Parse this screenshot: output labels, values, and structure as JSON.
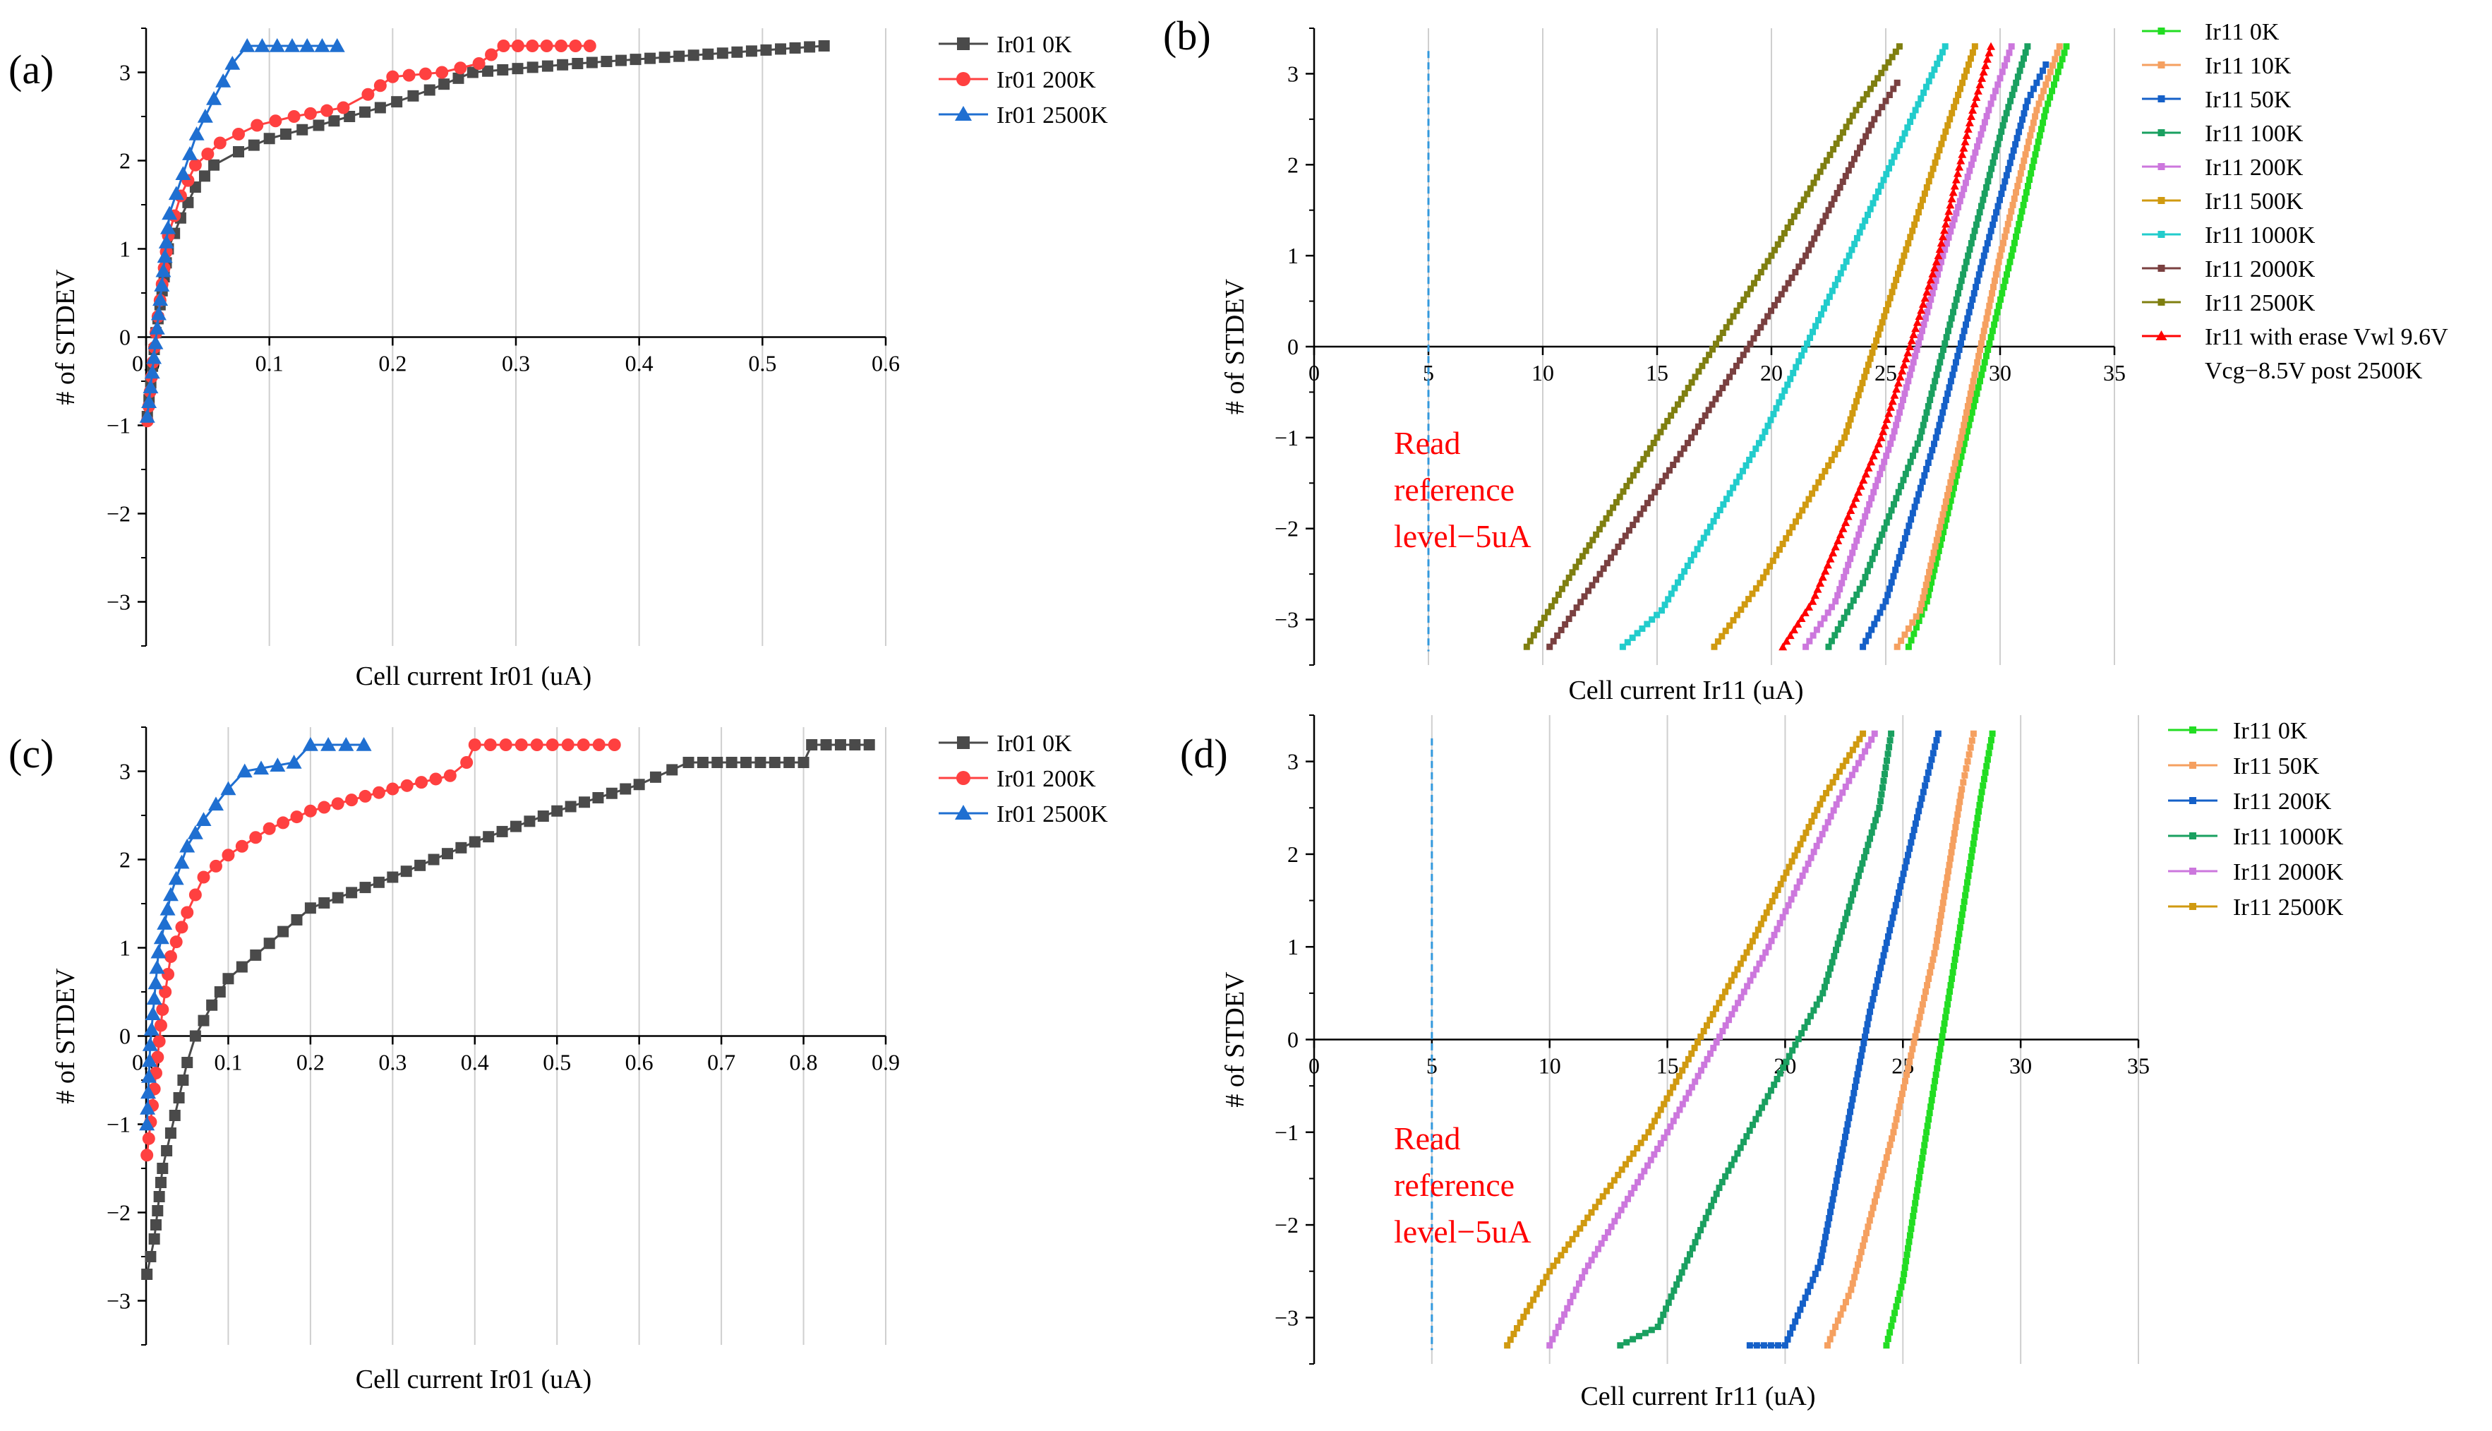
{
  "chart_data": [
    {
      "id": "a",
      "panel_label": "(a)",
      "type": "line",
      "xlabel": "Cell current Ir01 (uA)",
      "ylabel": "# of STDEV",
      "xlim": [
        0,
        0.6
      ],
      "ylim": [
        -3.5,
        3.5
      ],
      "xticks": [
        "0.0",
        "0.1",
        "0.2",
        "0.3",
        "0.4",
        "0.5",
        "0.6"
      ],
      "yticks": [
        "-3",
        "-2",
        "-1",
        "0",
        "1",
        "2",
        "3"
      ],
      "xgrid": true,
      "ygrid": false,
      "legend": "top-right outside",
      "series": [
        {
          "name": "Ir01 0K",
          "color": "#4a4a4a",
          "marker": "square",
          "x": [
            0.001,
            0.008,
            0.018,
            0.028,
            0.04,
            0.055,
            0.075,
            0.1,
            0.14,
            0.19,
            0.23,
            0.265,
            0.35,
            0.55
          ],
          "y": [
            -0.9,
            0.05,
            1.0,
            1.35,
            1.7,
            1.95,
            2.1,
            2.25,
            2.4,
            2.6,
            2.8,
            3.0,
            3.1,
            3.3
          ]
        },
        {
          "name": "Ir01 200K",
          "color": "#ff4040",
          "marker": "circle",
          "x": [
            0.001,
            0.008,
            0.018,
            0.028,
            0.04,
            0.06,
            0.09,
            0.12,
            0.16,
            0.18,
            0.2,
            0.24,
            0.27,
            0.29,
            0.36
          ],
          "y": [
            -0.95,
            0.05,
            1.15,
            1.6,
            1.95,
            2.2,
            2.4,
            2.5,
            2.6,
            2.75,
            2.95,
            3.0,
            3.1,
            3.3,
            3.3
          ]
        },
        {
          "name": "Ir01 2500K",
          "color": "#1f6fd1",
          "marker": "triangle",
          "x": [
            0.001,
            0.009,
            0.019,
            0.03,
            0.041,
            0.055,
            0.07,
            0.082,
            0.155
          ],
          "y": [
            -0.9,
            0.1,
            1.4,
            1.85,
            2.3,
            2.7,
            3.1,
            3.3,
            3.3
          ]
        }
      ]
    },
    {
      "id": "b",
      "panel_label": "(b)",
      "type": "line",
      "xlabel": "Cell current Ir11 (uA)",
      "ylabel": "# of STDEV",
      "xlim": [
        0,
        35
      ],
      "ylim": [
        -3.5,
        3.5
      ],
      "xticks": [
        "0",
        "5",
        "10",
        "15",
        "20",
        "25",
        "30",
        "35"
      ],
      "yticks": [
        "-3",
        "-2",
        "-1",
        "0",
        "1",
        "2",
        "3"
      ],
      "xgrid": true,
      "ygrid": false,
      "legend": "top-right outside",
      "annotation": {
        "lines": [
          "Read",
          "reference",
          "level−5uA"
        ],
        "x_value": 5
      },
      "series": [
        {
          "name": "Ir11 0K",
          "color": "#22dd22",
          "x": [
            26,
            26.8,
            28.5,
            30.5,
            32,
            32.9
          ],
          "y": [
            -3.3,
            -2.8,
            -1,
            1,
            2.6,
            3.3
          ]
        },
        {
          "name": "Ir11 10K",
          "color": "#f5a060",
          "x": [
            25.5,
            26.5,
            28.3,
            30,
            31.6,
            32.6
          ],
          "y": [
            -3.3,
            -2.9,
            -1,
            1,
            2.6,
            3.3
          ]
        },
        {
          "name": "Ir11 50K",
          "color": "#1560c8",
          "x": [
            24,
            25,
            27.2,
            29.3,
            31.2,
            32
          ],
          "y": [
            -3.3,
            -2.8,
            -1,
            1,
            2.7,
            3.1
          ]
        },
        {
          "name": "Ir11 100K",
          "color": "#1aa060",
          "x": [
            22.5,
            24,
            26.5,
            28.6,
            30.2,
            31.2
          ],
          "y": [
            -3.3,
            -2.6,
            -1,
            1,
            2.5,
            3.3
          ]
        },
        {
          "name": "Ir11 200K",
          "color": "#cc77dd",
          "x": [
            21.5,
            22.8,
            25.3,
            27.5,
            29.5,
            30.5
          ],
          "y": [
            -3.3,
            -2.8,
            -1,
            1,
            2.6,
            3.3
          ]
        },
        {
          "name": "Ir11 500K",
          "color": "#d09a10",
          "x": [
            17.5,
            19.5,
            23.2,
            25.8,
            27.8,
            28.9
          ],
          "y": [
            -3.3,
            -2.6,
            -1,
            1,
            2.5,
            3.3
          ]
        },
        {
          "name": "Ir11 1000K",
          "color": "#22cccc",
          "x": [
            13.5,
            15.2,
            19.6,
            23.4,
            26.3,
            27.6
          ],
          "y": [
            -3.3,
            -2.9,
            -1,
            1,
            2.6,
            3.3
          ]
        },
        {
          "name": "Ir11 2000K",
          "color": "#7a4040",
          "x": [
            10.3,
            12.5,
            16.5,
            21.5,
            24.5,
            25.5
          ],
          "y": [
            -3.3,
            -2.5,
            -1,
            1,
            2.5,
            2.9
          ]
        },
        {
          "name": "Ir11 2500K",
          "color": "#7f7f10",
          "x": [
            9.3,
            11,
            15,
            20,
            23.7,
            25.6
          ],
          "y": [
            -3.3,
            -2.6,
            -1,
            1,
            2.6,
            3.3
          ]
        },
        {
          "name": "Ir11 with erase Vwl 9.6V Vcg−8.5V post 2500K",
          "legend_lines": [
            "Ir11 with erase Vwl 9.6V",
            "Vcg−8.5V post 2500K"
          ],
          "color": "#ff0000",
          "x": [
            20.5,
            21.8,
            24.8,
            27.3,
            28.8,
            29.6
          ],
          "y": [
            -3.3,
            -2.8,
            -1,
            1,
            2.6,
            3.3
          ]
        }
      ]
    },
    {
      "id": "c",
      "panel_label": "(c)",
      "type": "line",
      "xlabel": "Cell current Ir01 (uA)",
      "ylabel": "# of STDEV",
      "xlim": [
        0,
        0.9
      ],
      "ylim": [
        -3.5,
        3.5
      ],
      "xticks": [
        "0.0",
        "0.1",
        "0.2",
        "0.3",
        "0.4",
        "0.5",
        "0.6",
        "0.7",
        "0.8",
        "0.9"
      ],
      "yticks": [
        "-3",
        "-2",
        "-1",
        "0",
        "1",
        "2",
        "3"
      ],
      "xgrid": true,
      "ygrid": false,
      "legend": "top-right outside",
      "series": [
        {
          "name": "Ir01 0K",
          "color": "#4a4a4a",
          "marker": "square",
          "x": [
            0.001,
            0.01,
            0.02,
            0.03,
            0.04,
            0.05,
            0.06,
            0.08,
            0.1,
            0.15,
            0.2,
            0.3,
            0.4,
            0.5,
            0.6,
            0.66,
            0.8,
            0.81,
            0.88
          ],
          "y": [
            -2.7,
            -2.3,
            -1.5,
            -1.1,
            -0.7,
            -0.3,
            0.0,
            0.35,
            0.65,
            1.05,
            1.45,
            1.8,
            2.2,
            2.55,
            2.85,
            3.1,
            3.1,
            3.3,
            3.3
          ]
        },
        {
          "name": "Ir01 200K",
          "color": "#ff4040",
          "marker": "circle",
          "x": [
            0.001,
            0.01,
            0.02,
            0.03,
            0.05,
            0.07,
            0.1,
            0.15,
            0.2,
            0.3,
            0.37,
            0.39,
            0.4,
            0.57
          ],
          "y": [
            -1.35,
            -0.6,
            0.3,
            0.9,
            1.4,
            1.8,
            2.05,
            2.35,
            2.55,
            2.8,
            2.95,
            3.1,
            3.3,
            3.3
          ]
        },
        {
          "name": "Ir01 2500K",
          "color": "#1f6fd1",
          "marker": "triangle",
          "x": [
            0.001,
            0.005,
            0.015,
            0.03,
            0.05,
            0.07,
            0.1,
            0.12,
            0.18,
            0.2,
            0.265
          ],
          "y": [
            -1.0,
            -0.1,
            0.95,
            1.6,
            2.15,
            2.45,
            2.8,
            3.0,
            3.1,
            3.3,
            3.3
          ]
        }
      ]
    },
    {
      "id": "d",
      "panel_label": "(d)",
      "type": "line",
      "xlabel": "Cell current Ir11 (uA)",
      "ylabel": "# of STDEV",
      "xlim": [
        0,
        35
      ],
      "ylim": [
        -3.5,
        3.5
      ],
      "xticks": [
        "0",
        "5",
        "10",
        "15",
        "20",
        "25",
        "30",
        "35"
      ],
      "yticks": [
        "-3",
        "-2",
        "-1",
        "0",
        "1",
        "2",
        "3"
      ],
      "xgrid": true,
      "ygrid": false,
      "legend": "top-right outside",
      "annotation": {
        "lines": [
          "Read",
          "reference",
          "level−5uA"
        ],
        "x_value": 5
      },
      "series": [
        {
          "name": "Ir11 0K",
          "color": "#22dd22",
          "x": [
            24.3,
            25,
            26,
            27.3,
            28.3,
            28.8
          ],
          "y": [
            -3.3,
            -2.6,
            -1,
            1,
            2.6,
            3.3
          ]
        },
        {
          "name": "Ir11 50K",
          "color": "#f5a060",
          "x": [
            21.8,
            22.8,
            24.6,
            26.4,
            27.5,
            28
          ],
          "y": [
            -3.3,
            -2.7,
            -1,
            1,
            2.7,
            3.3
          ]
        },
        {
          "name": "Ir11 200K",
          "color": "#1560c8",
          "x": [
            18.5,
            20,
            21.5,
            23.6,
            25.8,
            26.5
          ],
          "y": [
            -3.3,
            -3.3,
            -2.4,
            0.3,
            2.6,
            3.3
          ]
        },
        {
          "name": "Ir11 1000K",
          "color": "#1aa060",
          "x": [
            13,
            14.6,
            17.2,
            21.6,
            24,
            24.5
          ],
          "y": [
            -3.3,
            -3.1,
            -1.6,
            0.5,
            2.5,
            3.3
          ]
        },
        {
          "name": "Ir11 2000K",
          "color": "#cc77dd",
          "x": [
            10,
            11.5,
            15,
            19.3,
            22.3,
            23.8
          ],
          "y": [
            -3.3,
            -2.5,
            -1,
            1,
            2.6,
            3.3
          ]
        },
        {
          "name": "Ir11 2500K",
          "color": "#d09a10",
          "x": [
            8.2,
            10,
            14.2,
            18.5,
            21.6,
            23.3
          ],
          "y": [
            -3.3,
            -2.5,
            -1,
            1,
            2.6,
            3.3
          ]
        }
      ]
    }
  ]
}
